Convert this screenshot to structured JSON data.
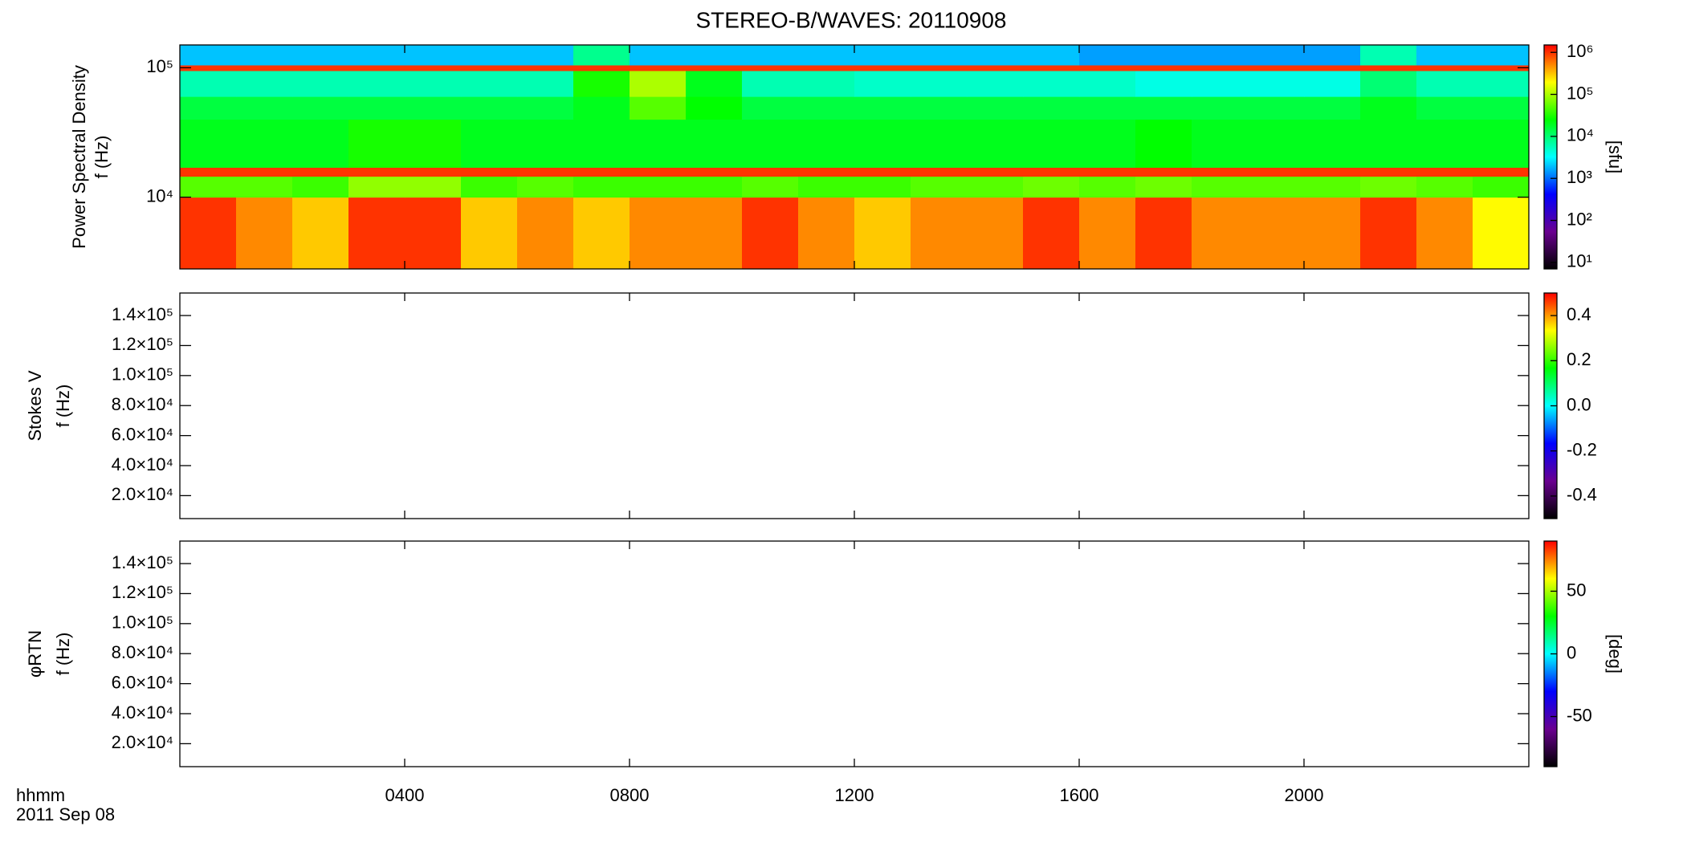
{
  "chart_data": [
    {
      "type": "heatmap",
      "title": "STEREO-B/WAVES: 20110908",
      "ylabel": [
        "Power Spectral Density",
        "f (Hz)"
      ],
      "xlim": [
        0,
        24
      ],
      "ylim": [
        2790,
        150000
      ],
      "ylog": true,
      "yticks": [
        {
          "value": 10000,
          "label": "10⁴"
        },
        {
          "value": 100000,
          "label": "10⁵"
        }
      ],
      "x": [
        0,
        1,
        2,
        3,
        4,
        5,
        6,
        7,
        8,
        9,
        10,
        11,
        12,
        13,
        14,
        15,
        16,
        17,
        18,
        19,
        20,
        21,
        22,
        23,
        24
      ],
      "y": [
        2790,
        10000,
        14500,
        17000,
        40000,
        60000,
        95000,
        105000,
        150000
      ],
      "z": [
        [
          1000000,
          500000,
          300000,
          1000000,
          1000000,
          300000,
          500000,
          300000,
          500000,
          500000,
          1000000,
          500000,
          300000,
          500000,
          500000,
          1000000,
          500000,
          1000000,
          500000,
          500000,
          500000,
          1000000,
          500000,
          200000
        ],
        [
          50000,
          50000,
          40000,
          80000,
          80000,
          40000,
          50000,
          40000,
          40000,
          40000,
          50000,
          40000,
          40000,
          50000,
          50000,
          60000,
          50000,
          60000,
          50000,
          50000,
          50000,
          60000,
          50000,
          40000
        ],
        [
          1000000,
          1000000,
          1000000,
          1000000,
          1000000,
          1000000,
          1000000,
          1000000,
          1000000,
          1000000,
          1000000,
          1000000,
          1000000,
          1000000,
          1000000,
          1000000,
          1000000,
          1000000,
          1000000,
          1000000,
          1000000,
          1000000,
          1000000,
          1000000
        ],
        [
          20000,
          20000,
          20000,
          30000,
          30000,
          20000,
          20000,
          20000,
          20000,
          20000,
          20000,
          20000,
          20000,
          20000,
          20000,
          20000,
          20000,
          25000,
          20000,
          20000,
          20000,
          20000,
          20000,
          20000
        ],
        [
          15000,
          15000,
          15000,
          15000,
          15000,
          15000,
          15000,
          20000,
          50000,
          25000,
          15000,
          15000,
          15000,
          15000,
          15000,
          15000,
          15000,
          15000,
          15000,
          15000,
          15000,
          20000,
          15000,
          15000
        ],
        [
          6000,
          6000,
          6000,
          6000,
          6000,
          6000,
          6000,
          30000,
          100000,
          20000,
          6000,
          6000,
          5000,
          5000,
          5000,
          5000,
          5000,
          4000,
          4000,
          4000,
          4000,
          10000,
          6000,
          6000
        ],
        [
          1000000,
          1000000,
          1000000,
          1000000,
          1000000,
          1000000,
          1000000,
          1000000,
          1000000,
          1000000,
          1000000,
          1000000,
          1000000,
          1000000,
          1000000,
          1000000,
          1000000,
          1000000,
          1000000,
          1000000,
          1000000,
          1000000,
          1000000,
          1000000
        ],
        [
          2000,
          2000,
          2000,
          2000,
          2000,
          2000,
          2000,
          8000,
          2000,
          2000,
          2000,
          2000,
          2000,
          2000,
          2000,
          2000,
          1500,
          1500,
          1500,
          1500,
          1500,
          6000,
          2000,
          2000
        ]
      ],
      "zlim": [
        7,
        1500000
      ],
      "zlog": true,
      "zticks": [
        {
          "value": 10,
          "label": "10¹"
        },
        {
          "value": 100,
          "label": "10²"
        },
        {
          "value": 1000,
          "label": "10³"
        },
        {
          "value": 10000,
          "label": "10⁴"
        },
        {
          "value": 100000,
          "label": "10⁵"
        },
        {
          "value": 1000000,
          "label": "10⁶"
        }
      ],
      "zlabel": "[sfu]",
      "colors": [
        "#000000",
        "#6a0090",
        "#0000ff",
        "#00ffff",
        "#00ff00",
        "#ffff00",
        "#ff0000"
      ]
    },
    {
      "type": "heatmap",
      "ylabel": [
        "Stokes V",
        "f (Hz)"
      ],
      "xlim": [
        0,
        24
      ],
      "ylim": [
        4700,
        155000
      ],
      "yticks": [
        {
          "value": 20000,
          "label": "2.0×10⁴"
        },
        {
          "value": 40000,
          "label": "4.0×10⁴"
        },
        {
          "value": 60000,
          "label": "6.0×10⁴"
        },
        {
          "value": 80000,
          "label": "8.0×10⁴"
        },
        {
          "value": 100000,
          "label": "1.0×10⁵"
        },
        {
          "value": 120000,
          "label": "1.2×10⁵"
        },
        {
          "value": 140000,
          "label": "1.4×10⁵"
        }
      ],
      "zlim": [
        -0.5,
        0.5
      ],
      "zticks": [
        -0.4,
        -0.2,
        {
          "value": 0,
          "label": "0.0"
        },
        0.2,
        0.4
      ],
      "colors": [
        "#000000",
        "#6a0090",
        "#0000ff",
        "#00ffff",
        "#00ff00",
        "#ffff00",
        "#ff0000"
      ]
    },
    {
      "type": "heatmap",
      "ylabel": [
        "φRTN",
        "f (Hz)"
      ],
      "xlim": [
        0,
        24
      ],
      "ylim": [
        4700,
        155000
      ],
      "yticks": [
        {
          "value": 20000,
          "label": "2.0×10⁴"
        },
        {
          "value": 40000,
          "label": "4.0×10⁴"
        },
        {
          "value": 60000,
          "label": "6.0×10⁴"
        },
        {
          "value": 80000,
          "label": "8.0×10⁴"
        },
        {
          "value": 100000,
          "label": "1.0×10⁵"
        },
        {
          "value": 120000,
          "label": "1.2×10⁵"
        },
        {
          "value": 140000,
          "label": "1.4×10⁵"
        }
      ],
      "xticks": [
        {
          "value": 4,
          "label": "0400"
        },
        {
          "value": 8,
          "label": "0800"
        },
        {
          "value": 12,
          "label": "1200"
        },
        {
          "value": 16,
          "label": "1600"
        },
        {
          "value": 20,
          "label": "2000"
        }
      ],
      "xlabel": [
        "hhmm",
        "2011 Sep 08"
      ],
      "zlim": [
        -90,
        90
      ],
      "zticks": [
        -50,
        0,
        50
      ],
      "zlabel": "[deg]",
      "colors": [
        "#000000",
        "#6a0090",
        "#0000ff",
        "#00ffff",
        "#00ff00",
        "#ffff00",
        "#ff0000"
      ]
    }
  ]
}
